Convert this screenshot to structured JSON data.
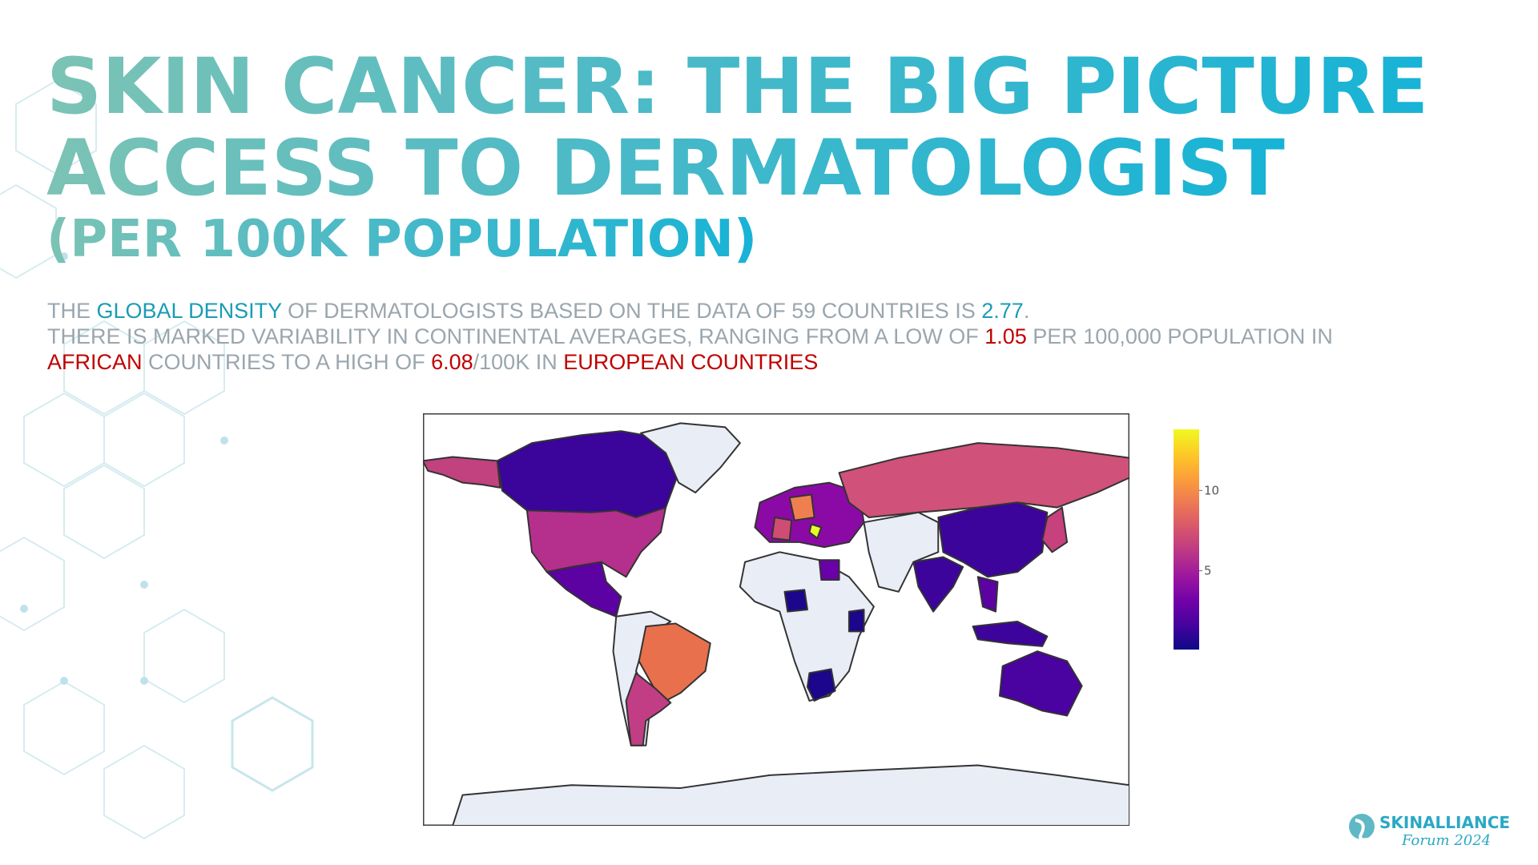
{
  "slide": {
    "title_lines": [
      "SKIN CANCER: THE BIG PICTURE",
      "ACCESS TO DERMATOLOGIST",
      "(PER 100K POPULATION)"
    ],
    "summary": [
      [
        {
          "text": "THE ",
          "color": "#9aa6ae"
        },
        {
          "text": "GLOBAL DENSITY",
          "color": "#1a9cb4"
        },
        {
          "text": " OF DERMATOLOGISTS BASED ON THE DATA OF 59 COUNTRIES IS ",
          "color": "#9aa6ae"
        },
        {
          "text": "2.77",
          "color": "#1a9cb4"
        },
        {
          "text": ".",
          "color": "#9aa6ae"
        }
      ],
      [
        {
          "text": "THERE IS MARKED VARIABILITY IN CONTINENTAL AVERAGES, RANGING FROM A LOW OF ",
          "color": "#9aa6ae"
        },
        {
          "text": "1.05",
          "color": "#c00000"
        },
        {
          "text": " PER 100,000 POPULATION IN",
          "color": "#9aa6ae"
        }
      ],
      [
        {
          "text": "AFRICAN",
          "color": "#c00000"
        },
        {
          "text": " COUNTRIES TO A HIGH OF ",
          "color": "#9aa6ae"
        },
        {
          "text": "6.08",
          "color": "#c00000"
        },
        {
          "text": "/100K IN ",
          "color": "#9aa6ae"
        },
        {
          "text": "EUROPEAN COUNTRIES",
          "color": "#c00000"
        }
      ]
    ],
    "map": {
      "colorbar": {
        "range": [
          0.1,
          13.8
        ],
        "ticks": [
          5,
          10
        ],
        "colors": [
          "#0d0887",
          "#46039f",
          "#7201a8",
          "#9c179e",
          "#bd3786",
          "#d8576b",
          "#ed7953",
          "#fb9f3a",
          "#fdca26",
          "#f0f921"
        ]
      }
    },
    "logo": {
      "brand": "SKINALLIANCE",
      "event": "Forum 2024"
    }
  }
}
